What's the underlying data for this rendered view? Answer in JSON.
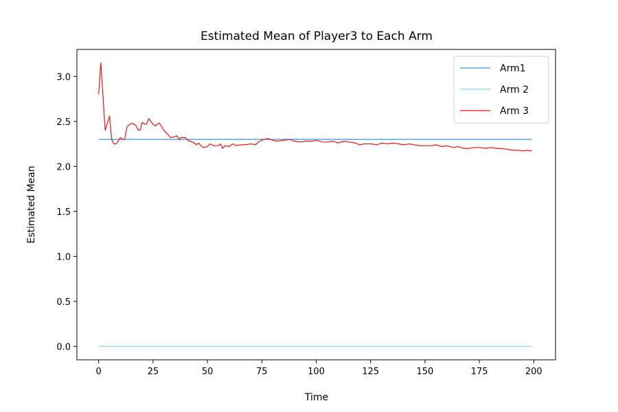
{
  "chart_data": {
    "type": "line",
    "title": "Estimated Mean of Player3 to Each Arm",
    "xlabel": "Time",
    "ylabel": "Estimated Mean",
    "xlim": [
      -10,
      210
    ],
    "ylim": [
      -0.15,
      3.3
    ],
    "x_ticks": [
      0,
      25,
      50,
      75,
      100,
      125,
      150,
      175,
      200
    ],
    "y_ticks": [
      0.0,
      0.5,
      1.0,
      1.5,
      2.0,
      2.5,
      3.0
    ],
    "x_tick_labels": [
      "0",
      "25",
      "50",
      "75",
      "100",
      "125",
      "150",
      "175",
      "200"
    ],
    "y_tick_labels": [
      "0.0",
      "0.5",
      "1.0",
      "1.5",
      "2.0",
      "2.5",
      "3.0"
    ],
    "grid": false,
    "legend_position": "top-right",
    "series": [
      {
        "name": "Arm1",
        "color": "#3d8fdc",
        "x": [
          0,
          199
        ],
        "values": [
          2.3,
          2.3
        ]
      },
      {
        "name": "Arm 2",
        "color": "#8fd3ec",
        "x": [
          0,
          199
        ],
        "values": [
          0.0,
          0.0
        ]
      },
      {
        "name": "Arm 3",
        "color": "#ee1111",
        "x": [
          0,
          1,
          3,
          5,
          6,
          7,
          8,
          9,
          10,
          11,
          12,
          13,
          15,
          17,
          18,
          19,
          20,
          21,
          22,
          23,
          25,
          26,
          27,
          28,
          30,
          32,
          33,
          35,
          36,
          37,
          38,
          39,
          40,
          41,
          43,
          44,
          45,
          46,
          47,
          48,
          50,
          51,
          53,
          55,
          56,
          57,
          58,
          60,
          61,
          62,
          63,
          65,
          67,
          70,
          72,
          74,
          76,
          78,
          80,
          82,
          85,
          88,
          90,
          93,
          95,
          98,
          100,
          103,
          105,
          108,
          110,
          113,
          115,
          118,
          120,
          122,
          125,
          128,
          130,
          133,
          135,
          138,
          140,
          143,
          145,
          148,
          150,
          153,
          155,
          158,
          160,
          163,
          165,
          168,
          170,
          173,
          175,
          178,
          180,
          183,
          185,
          188,
          190,
          193,
          195,
          197,
          199
        ],
        "values": [
          2.8,
          3.15,
          2.4,
          2.56,
          2.3,
          2.25,
          2.25,
          2.28,
          2.32,
          2.3,
          2.3,
          2.44,
          2.48,
          2.46,
          2.41,
          2.4,
          2.49,
          2.47,
          2.47,
          2.53,
          2.47,
          2.45,
          2.47,
          2.48,
          2.4,
          2.35,
          2.32,
          2.33,
          2.34,
          2.3,
          2.32,
          2.32,
          2.32,
          2.29,
          2.27,
          2.26,
          2.24,
          2.26,
          2.23,
          2.21,
          2.22,
          2.25,
          2.23,
          2.23,
          2.25,
          2.2,
          2.23,
          2.22,
          2.24,
          2.25,
          2.23,
          2.24,
          2.24,
          2.25,
          2.24,
          2.28,
          2.3,
          2.31,
          2.29,
          2.28,
          2.29,
          2.3,
          2.28,
          2.27,
          2.28,
          2.28,
          2.29,
          2.27,
          2.27,
          2.28,
          2.26,
          2.28,
          2.27,
          2.26,
          2.24,
          2.25,
          2.25,
          2.24,
          2.26,
          2.25,
          2.26,
          2.25,
          2.24,
          2.25,
          2.24,
          2.23,
          2.23,
          2.23,
          2.24,
          2.22,
          2.23,
          2.21,
          2.22,
          2.2,
          2.2,
          2.21,
          2.21,
          2.2,
          2.21,
          2.2,
          2.2,
          2.19,
          2.18,
          2.18,
          2.17,
          2.18,
          2.17
        ]
      }
    ]
  }
}
